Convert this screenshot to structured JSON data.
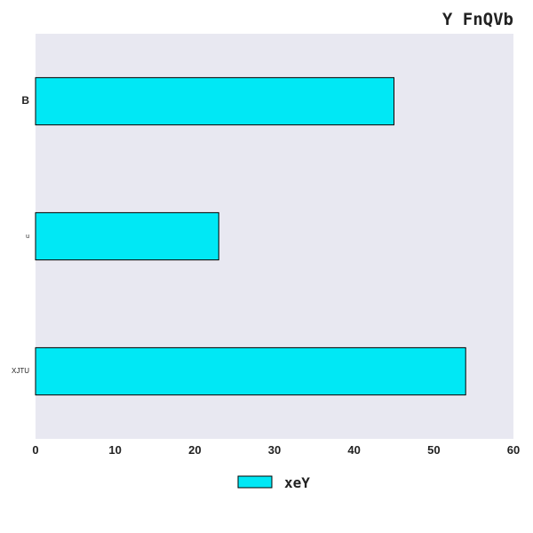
{
  "chart_data": {
    "type": "bar",
    "orientation": "horizontal",
    "title": "Y FnQVb",
    "categories": [
      "B",
      "u",
      "XJTU"
    ],
    "series": [
      {
        "name": "xeY",
        "values": [
          45,
          23,
          54
        ]
      }
    ],
    "xlim": [
      0,
      60
    ],
    "xticks": [
      "0",
      "10",
      "20",
      "30",
      "40",
      "50",
      "60"
    ],
    "grid": false,
    "legend_position": "bottom-center",
    "colors": {
      "bar_fill": "#00e8f5",
      "bar_edge": "#000000",
      "plot_background": "#e8e8f1"
    }
  }
}
